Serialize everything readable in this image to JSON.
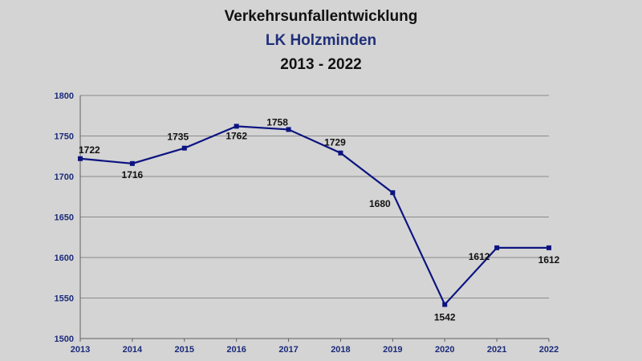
{
  "chart_data": {
    "type": "line",
    "title": "Verkehrsunfallentwicklung",
    "subtitle": "LK Holzminden",
    "period": "2013 - 2022",
    "categories": [
      "2013",
      "2014",
      "2015",
      "2016",
      "2017",
      "2018",
      "2019",
      "2020",
      "2021",
      "2022"
    ],
    "series": [
      {
        "values": [
          1722,
          1716,
          1735,
          1762,
          1758,
          1729,
          1680,
          1542,
          1612,
          1612
        ]
      }
    ],
    "ylim": [
      1500,
      1800
    ],
    "yticks": [
      1800,
      1750,
      1700,
      1650,
      1600,
      1550,
      1500
    ],
    "grid": true,
    "legend": "none",
    "colors": {
      "line": "#0d1480",
      "grid": "#8a8a8a",
      "axis": "#606060",
      "ticks": "#1a2a7a"
    }
  }
}
